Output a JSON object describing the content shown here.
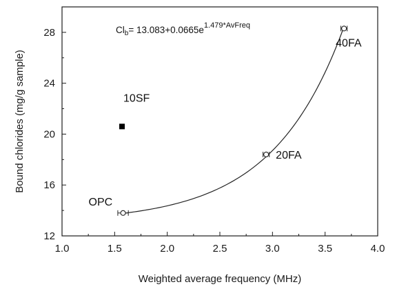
{
  "chart_data": {
    "type": "scatter",
    "xlabel": "Weighted average frequency (MHz)",
    "ylabel": "Bound chlorides (mg/g sample)",
    "xlim": [
      1.0,
      4.0
    ],
    "ylim": [
      12,
      30
    ],
    "x_ticks": [
      1.0,
      1.5,
      2.0,
      2.5,
      3.0,
      3.5,
      4.0
    ],
    "y_ticks": [
      12,
      16,
      20,
      24,
      28
    ],
    "x_tick_labels": [
      "1.0",
      "1.5",
      "2.0",
      "2.5",
      "3.0",
      "3.5",
      "4.0"
    ],
    "y_tick_labels": [
      "12",
      "16",
      "20",
      "24",
      "28"
    ],
    "grid": false,
    "points": [
      {
        "label": "OPC",
        "x": 1.58,
        "y": 13.8,
        "xerr": 0.05,
        "marker": "open-circle"
      },
      {
        "label": "10SF",
        "x": 1.57,
        "y": 20.6,
        "marker": "filled-square"
      },
      {
        "label": "20FA",
        "x": 2.94,
        "y": 18.4,
        "xerr": 0.03,
        "marker": "open-circle"
      },
      {
        "label": "40FA",
        "x": 3.68,
        "y": 28.3,
        "xerr": 0.03,
        "marker": "open-circle"
      }
    ],
    "fit": {
      "equation_prefix": "Cl",
      "equation_sub": "b",
      "equation_main": "= 13.083+0.0665e",
      "equation_sup": "1.479*AvFreq",
      "a": 13.083,
      "b": 0.0665,
      "c": 1.479,
      "x_range": [
        1.58,
        3.68
      ]
    }
  }
}
